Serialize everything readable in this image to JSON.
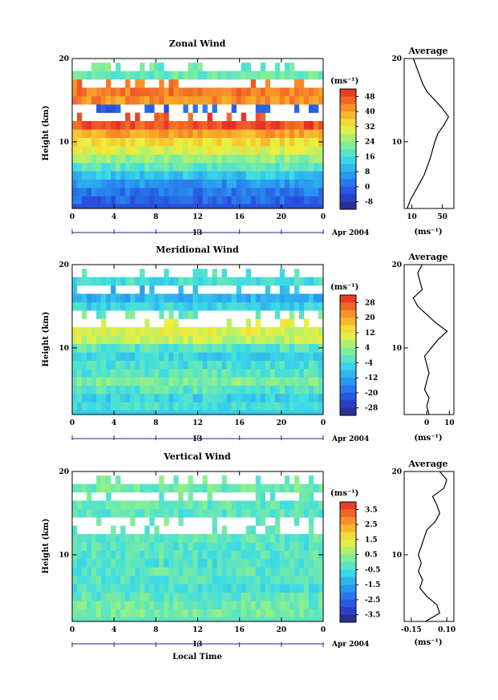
{
  "chart_data": [
    {
      "type": "heatmap",
      "title": "Zonal Wind",
      "ylabel": "Height (km)",
      "xlabel": "",
      "unit_label": "(ms⁻¹)",
      "date_label": "Apr 2004",
      "day_label": "13",
      "x_ticks": [
        "0",
        "4",
        "8",
        "12",
        "16",
        "20",
        "0"
      ],
      "y_ticks": [
        "10",
        "20"
      ],
      "xlim": [
        0,
        24
      ],
      "ylim": [
        2,
        20
      ],
      "colorbar_ticks": [
        "48",
        "40",
        "32",
        "24",
        "16",
        "8",
        "0",
        "-8"
      ],
      "colorbar_range": [
        -12,
        52
      ],
      "field": {
        "heights_km": [
          3,
          4,
          5,
          6,
          7,
          8,
          9,
          10,
          11,
          12,
          13,
          14,
          15,
          16,
          17,
          18,
          19
        ],
        "profile_ms": [
          0,
          2,
          6,
          12,
          18,
          24,
          30,
          34,
          40,
          48,
          null,
          null,
          42,
          44,
          null,
          20,
          null
        ]
      },
      "profile": {
        "title": "Average",
        "xlabel": "(ms⁻¹)",
        "x_ticks": [
          "10",
          "50"
        ],
        "xlim": [
          0,
          65
        ],
        "y_ticks": [
          "10",
          "20"
        ],
        "heights_km": [
          2,
          3,
          4,
          5,
          6,
          7,
          8,
          9,
          10,
          11,
          12,
          13,
          14,
          15,
          16,
          17,
          18,
          19,
          20
        ],
        "values": [
          4,
          8,
          14,
          20,
          26,
          30,
          34,
          37,
          40,
          44,
          52,
          58,
          50,
          40,
          30,
          24,
          20,
          16,
          12
        ]
      }
    },
    {
      "type": "heatmap",
      "title": "Meridional Wind",
      "ylabel": "Height (km)",
      "xlabel": "",
      "unit_label": "(ms⁻¹)",
      "date_label": "Apr 2004",
      "day_label": "13",
      "x_ticks": [
        "0",
        "4",
        "8",
        "12",
        "16",
        "20",
        "0"
      ],
      "y_ticks": [
        "10",
        "20"
      ],
      "xlim": [
        0,
        24
      ],
      "ylim": [
        2,
        20
      ],
      "colorbar_ticks": [
        "28",
        "20",
        "12",
        "4",
        "-4",
        "-12",
        "-20",
        "-28"
      ],
      "colorbar_range": [
        -32,
        32
      ],
      "field": {
        "heights_km": [
          3,
          4,
          5,
          6,
          7,
          8,
          9,
          10,
          11,
          12,
          13,
          14,
          15,
          16,
          17,
          18,
          19
        ],
        "profile_ms": [
          -4,
          -6,
          -2,
          2,
          -2,
          -4,
          -6,
          -2,
          8,
          10,
          null,
          null,
          -6,
          -10,
          null,
          -4,
          null
        ]
      },
      "profile": {
        "title": "Average",
        "xlabel": "(ms⁻¹)",
        "x_ticks": [
          "0",
          "10"
        ],
        "xlim": [
          -10,
          12
        ],
        "y_ticks": [
          "10",
          "20"
        ],
        "heights_km": [
          2,
          3,
          4,
          5,
          6,
          7,
          8,
          9,
          10,
          11,
          12,
          13,
          14,
          15,
          16,
          17,
          18,
          19,
          20
        ],
        "values": [
          1,
          0,
          1,
          -1,
          0,
          1,
          0,
          -1,
          2,
          5,
          9,
          4,
          0,
          -4,
          -6,
          -2,
          -3,
          -4,
          -2
        ]
      }
    },
    {
      "type": "heatmap",
      "title": "Vertical Wind",
      "ylabel": "Height (km)",
      "xlabel": "Local Time",
      "unit_label": "(ms⁻¹)",
      "date_label": "Apr 2004",
      "day_label": "13",
      "x_ticks": [
        "0",
        "4",
        "8",
        "12",
        "16",
        "20",
        "0"
      ],
      "y_ticks": [
        "10",
        "20"
      ],
      "xlim": [
        0,
        24
      ],
      "ylim": [
        2,
        20
      ],
      "colorbar_ticks": [
        "3.5",
        "2.5",
        "1.5",
        "0.5",
        "-0.5",
        "-1.5",
        "-2.5",
        "-3.5"
      ],
      "colorbar_range": [
        -4,
        4
      ],
      "field": {
        "heights_km": [
          3,
          4,
          5,
          6,
          7,
          8,
          9,
          10,
          11,
          12,
          13,
          14,
          15,
          16,
          17,
          18,
          19
        ],
        "profile_ms": [
          0.2,
          0,
          -0.2,
          -0.4,
          -0.3,
          -0.2,
          -0.4,
          -0.2,
          -0.3,
          -0.2,
          null,
          null,
          -0.2,
          -0.1,
          null,
          0,
          null
        ]
      },
      "profile": {
        "title": "Average",
        "xlabel": "(ms⁻¹)",
        "x_ticks": [
          "-0.15",
          "0.10"
        ],
        "xlim": [
          -0.2,
          0.15
        ],
        "y_ticks": [
          "10",
          "20"
        ],
        "heights_km": [
          2,
          3,
          4,
          5,
          6,
          7,
          8,
          9,
          10,
          11,
          12,
          13,
          14,
          15,
          16,
          17,
          18,
          19,
          20
        ],
        "values": [
          -0.05,
          0.05,
          0.03,
          -0.04,
          -0.09,
          -0.07,
          -0.1,
          -0.08,
          -0.1,
          -0.08,
          -0.06,
          -0.04,
          0.02,
          0.05,
          0.03,
          0.0,
          0.08,
          0.1,
          0.05
        ]
      }
    }
  ]
}
